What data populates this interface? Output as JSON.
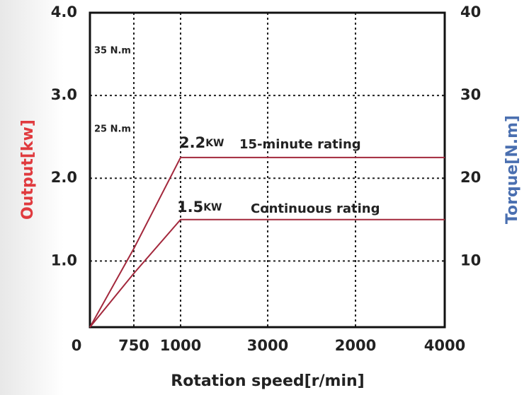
{
  "chart_data": {
    "type": "line",
    "origin_label": "0",
    "categories": [
      "0",
      "750",
      "1000",
      "3000",
      "2000",
      "4000"
    ],
    "series": [
      {
        "name": "15-minute rating",
        "color": "#a3283c",
        "values": [
          0.2,
          1.15,
          2.25,
          2.25,
          2.25,
          2.25
        ]
      },
      {
        "name": "Continuous rating",
        "color": "#a3283c",
        "values": [
          0.2,
          0.85,
          1.5,
          1.5,
          1.5,
          1.5
        ]
      }
    ],
    "ylim": [
      0.2,
      4.0
    ],
    "yticks": [
      {
        "value": 1,
        "label": "1.0"
      },
      {
        "value": 2,
        "label": "2.0"
      },
      {
        "value": 3,
        "label": "3.0"
      },
      {
        "value": 4,
        "label": "4.0"
      }
    ],
    "y2lim": [
      2,
      40
    ],
    "y2ticks": [
      10,
      20,
      30,
      40
    ],
    "ylabel": "Output[kw]",
    "y2label": "Torque[N.m]",
    "xlabel": "Rotation speed[r/min]",
    "annotations": [
      "35 N.m",
      "25 N.m",
      "2.2",
      "KW",
      "1.5",
      "KW"
    ],
    "grid": true
  }
}
